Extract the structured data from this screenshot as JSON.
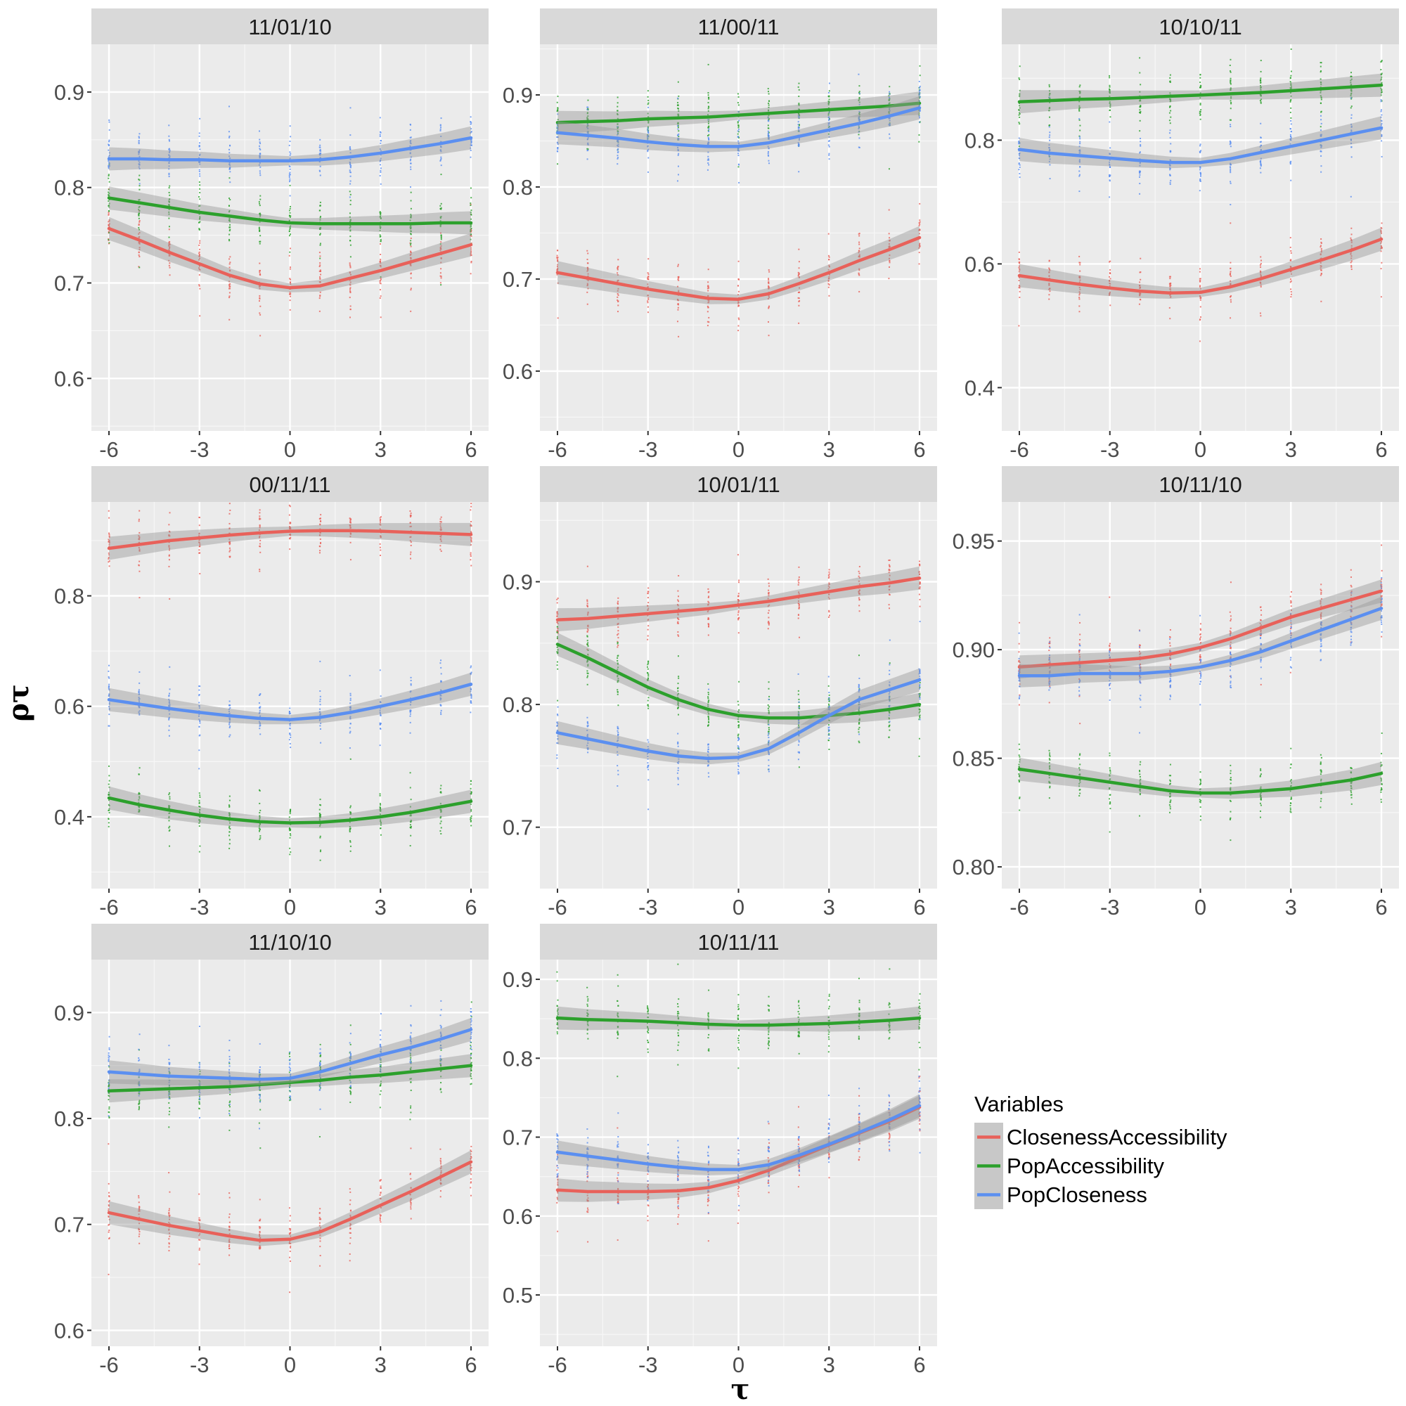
{
  "chart_data": {
    "type": "line",
    "xlabel": "τ",
    "ylabel": "ρτ",
    "x_ticks": [
      -6,
      -3,
      0,
      3,
      6
    ],
    "x": [
      -6,
      -5,
      -4,
      -3,
      -2,
      -1,
      0,
      1,
      2,
      3,
      4,
      5,
      6
    ],
    "legend": {
      "title": "Variables",
      "placement": "right",
      "entries": [
        {
          "name": "ClosenessAccessibility",
          "color": "#e8615a"
        },
        {
          "name": "PopAccessibility",
          "color": "#2ca02c"
        },
        {
          "name": "PopCloseness",
          "color": "#5b8ff0"
        }
      ]
    },
    "panels": [
      {
        "title": "11/01/10",
        "ylim": [
          0.545,
          0.95
        ],
        "yticks": [
          "0.6",
          "0.7",
          "0.8",
          "0.9"
        ],
        "series": [
          {
            "name": "ClosenessAccessibility",
            "values": [
              0.757,
              0.745,
              0.732,
              0.72,
              0.708,
              0.699,
              0.695,
              0.697,
              0.705,
              0.713,
              0.722,
              0.731,
              0.74
            ]
          },
          {
            "name": "PopAccessibility",
            "values": [
              0.789,
              0.784,
              0.779,
              0.774,
              0.77,
              0.766,
              0.763,
              0.762,
              0.762,
              0.762,
              0.762,
              0.763,
              0.763
            ]
          },
          {
            "name": "PopCloseness",
            "values": [
              0.83,
              0.83,
              0.829,
              0.829,
              0.828,
              0.828,
              0.828,
              0.829,
              0.832,
              0.836,
              0.841,
              0.846,
              0.852
            ]
          }
        ]
      },
      {
        "title": "11/00/11",
        "ylim": [
          0.535,
          0.955
        ],
        "yticks": [
          "0.6",
          "0.7",
          "0.8",
          "0.9"
        ],
        "series": [
          {
            "name": "ClosenessAccessibility",
            "values": [
              0.707,
              0.701,
              0.695,
              0.689,
              0.684,
              0.679,
              0.678,
              0.684,
              0.695,
              0.707,
              0.72,
              0.732,
              0.745
            ]
          },
          {
            "name": "PopAccessibility",
            "values": [
              0.87,
              0.871,
              0.872,
              0.874,
              0.875,
              0.876,
              0.878,
              0.88,
              0.882,
              0.884,
              0.886,
              0.888,
              0.891
            ]
          },
          {
            "name": "PopCloseness",
            "values": [
              0.859,
              0.856,
              0.853,
              0.849,
              0.846,
              0.844,
              0.844,
              0.848,
              0.855,
              0.862,
              0.869,
              0.877,
              0.886
            ]
          }
        ]
      },
      {
        "title": "10/10/11",
        "ylim": [
          0.33,
          0.955
        ],
        "yticks": [
          "0.4",
          "0.6",
          "0.8"
        ],
        "series": [
          {
            "name": "ClosenessAccessibility",
            "values": [
              0.581,
              0.574,
              0.567,
              0.561,
              0.556,
              0.553,
              0.554,
              0.563,
              0.576,
              0.591,
              0.606,
              0.622,
              0.64
            ]
          },
          {
            "name": "PopAccessibility",
            "values": [
              0.862,
              0.864,
              0.866,
              0.867,
              0.869,
              0.871,
              0.873,
              0.875,
              0.877,
              0.88,
              0.883,
              0.886,
              0.889
            ]
          },
          {
            "name": "PopCloseness",
            "values": [
              0.785,
              0.779,
              0.775,
              0.771,
              0.767,
              0.764,
              0.764,
              0.77,
              0.78,
              0.79,
              0.8,
              0.81,
              0.82
            ]
          }
        ]
      },
      {
        "title": "00/11/11",
        "ylim": [
          0.27,
          0.97
        ],
        "yticks": [
          "0.4",
          "0.6",
          "0.8"
        ],
        "series": [
          {
            "name": "ClosenessAccessibility",
            "values": [
              0.886,
              0.893,
              0.9,
              0.905,
              0.91,
              0.914,
              0.917,
              0.918,
              0.918,
              0.917,
              0.915,
              0.913,
              0.911
            ]
          },
          {
            "name": "PopAccessibility",
            "values": [
              0.434,
              0.422,
              0.412,
              0.403,
              0.396,
              0.391,
              0.389,
              0.39,
              0.394,
              0.4,
              0.408,
              0.418,
              0.428
            ]
          },
          {
            "name": "PopCloseness",
            "values": [
              0.612,
              0.604,
              0.596,
              0.589,
              0.583,
              0.578,
              0.576,
              0.58,
              0.589,
              0.6,
              0.612,
              0.625,
              0.64
            ]
          }
        ]
      },
      {
        "title": "10/01/11",
        "ylim": [
          0.65,
          0.965
        ],
        "yticks": [
          "0.7",
          "0.8",
          "0.9"
        ],
        "series": [
          {
            "name": "ClosenessAccessibility",
            "values": [
              0.869,
              0.87,
              0.872,
              0.874,
              0.876,
              0.878,
              0.881,
              0.884,
              0.888,
              0.892,
              0.896,
              0.899,
              0.903
            ]
          },
          {
            "name": "PopAccessibility",
            "values": [
              0.849,
              0.838,
              0.826,
              0.814,
              0.804,
              0.796,
              0.791,
              0.789,
              0.789,
              0.791,
              0.793,
              0.796,
              0.8
            ]
          },
          {
            "name": "PopCloseness",
            "values": [
              0.777,
              0.772,
              0.767,
              0.762,
              0.758,
              0.756,
              0.757,
              0.764,
              0.777,
              0.791,
              0.804,
              0.812,
              0.82
            ]
          }
        ]
      },
      {
        "title": "10/11/10",
        "ylim": [
          0.79,
          0.968
        ],
        "yticks": [
          "0.80",
          "0.85",
          "0.90",
          "0.95"
        ],
        "series": [
          {
            "name": "ClosenessAccessibility",
            "values": [
              0.892,
              0.893,
              0.894,
              0.895,
              0.896,
              0.898,
              0.901,
              0.905,
              0.91,
              0.915,
              0.919,
              0.923,
              0.927
            ]
          },
          {
            "name": "PopAccessibility",
            "values": [
              0.845,
              0.843,
              0.841,
              0.839,
              0.837,
              0.835,
              0.834,
              0.834,
              0.835,
              0.836,
              0.838,
              0.84,
              0.843
            ]
          },
          {
            "name": "PopCloseness",
            "values": [
              0.888,
              0.888,
              0.889,
              0.889,
              0.889,
              0.89,
              0.892,
              0.895,
              0.899,
              0.904,
              0.909,
              0.914,
              0.919
            ]
          }
        ]
      },
      {
        "title": "11/10/10",
        "ylim": [
          0.585,
          0.95
        ],
        "yticks": [
          "0.6",
          "0.7",
          "0.8",
          "0.9"
        ],
        "series": [
          {
            "name": "ClosenessAccessibility",
            "values": [
              0.711,
              0.705,
              0.699,
              0.694,
              0.689,
              0.685,
              0.686,
              0.693,
              0.705,
              0.718,
              0.731,
              0.745,
              0.759
            ]
          },
          {
            "name": "PopAccessibility",
            "values": [
              0.826,
              0.827,
              0.828,
              0.829,
              0.83,
              0.832,
              0.834,
              0.836,
              0.839,
              0.841,
              0.844,
              0.847,
              0.85
            ]
          },
          {
            "name": "PopCloseness",
            "values": [
              0.844,
              0.842,
              0.84,
              0.839,
              0.838,
              0.837,
              0.838,
              0.844,
              0.852,
              0.86,
              0.867,
              0.875,
              0.884
            ]
          }
        ]
      },
      {
        "title": "10/11/11",
        "ylim": [
          0.435,
          0.925
        ],
        "yticks": [
          "0.5",
          "0.6",
          "0.7",
          "0.8",
          "0.9"
        ],
        "series": [
          {
            "name": "ClosenessAccessibility",
            "values": [
              0.633,
              0.631,
              0.631,
              0.631,
              0.632,
              0.636,
              0.645,
              0.658,
              0.674,
              0.69,
              0.705,
              0.72,
              0.738
            ]
          },
          {
            "name": "PopAccessibility",
            "values": [
              0.851,
              0.849,
              0.848,
              0.847,
              0.845,
              0.843,
              0.842,
              0.842,
              0.843,
              0.844,
              0.846,
              0.848,
              0.851
            ]
          },
          {
            "name": "PopCloseness",
            "values": [
              0.681,
              0.676,
              0.671,
              0.666,
              0.662,
              0.659,
              0.659,
              0.665,
              0.677,
              0.691,
              0.706,
              0.722,
              0.74
            ]
          }
        ]
      }
    ]
  }
}
